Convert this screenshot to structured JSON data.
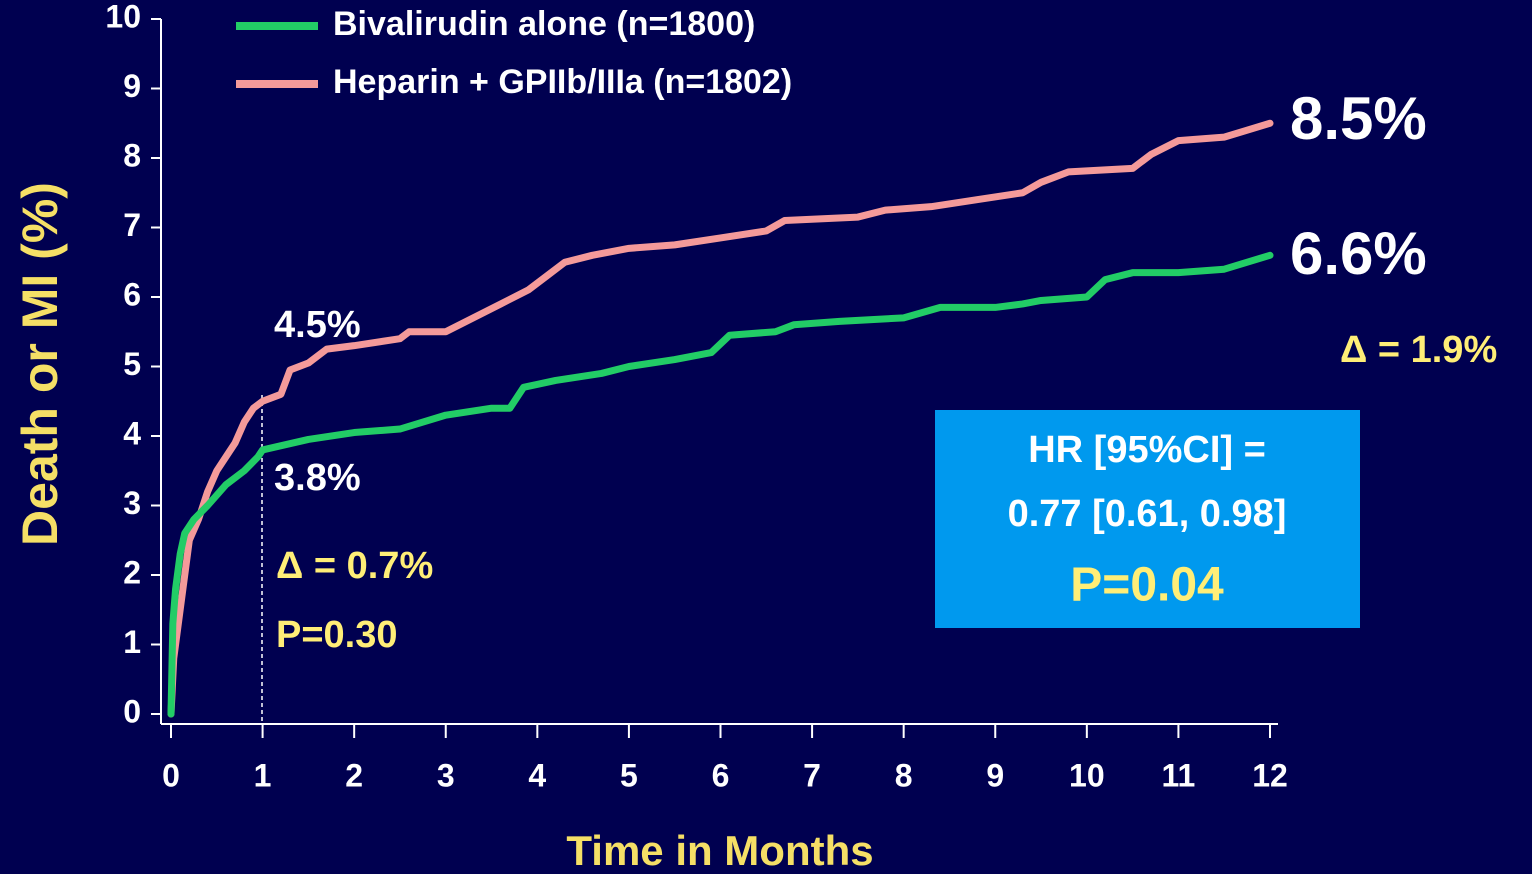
{
  "chart_data": {
    "type": "line",
    "xlabel": "Time in Months",
    "ylabel": "Death or MI (%)",
    "xlim": [
      0,
      12
    ],
    "ylim": [
      0,
      10
    ],
    "xticks": [
      0,
      1,
      2,
      3,
      4,
      5,
      6,
      7,
      8,
      9,
      10,
      11,
      12
    ],
    "yticks": [
      0,
      1,
      2,
      3,
      4,
      5,
      6,
      7,
      8,
      9,
      10
    ],
    "series": [
      {
        "name": "Bivalirudin alone (n=1800)",
        "color": "#22cc66",
        "x": [
          0,
          0.02,
          0.05,
          0.1,
          0.15,
          0.25,
          0.4,
          0.6,
          0.8,
          0.95,
          1.0,
          1.5,
          2,
          2.5,
          3,
          3.5,
          3.7,
          3.85,
          4.2,
          4.7,
          5,
          5.5,
          5.9,
          6.1,
          6.6,
          6.8,
          7.3,
          8,
          8.4,
          9,
          9.3,
          9.5,
          10,
          10.2,
          10.5,
          11,
          11.5,
          12
        ],
        "values": [
          0,
          1.3,
          1.8,
          2.3,
          2.6,
          2.8,
          3.0,
          3.3,
          3.5,
          3.7,
          3.8,
          3.95,
          4.05,
          4.1,
          4.3,
          4.4,
          4.4,
          4.7,
          4.8,
          4.9,
          5.0,
          5.1,
          5.2,
          5.45,
          5.5,
          5.6,
          5.65,
          5.7,
          5.85,
          5.85,
          5.9,
          5.95,
          6.0,
          6.25,
          6.35,
          6.35,
          6.4,
          6.6
        ]
      },
      {
        "name": "Heparin + GPIIb/IIIa (n=1802)",
        "color": "#f49a9a",
        "x": [
          0,
          0.03,
          0.1,
          0.15,
          0.2,
          0.3,
          0.4,
          0.5,
          0.6,
          0.7,
          0.8,
          0.9,
          1.0,
          1.2,
          1.3,
          1.5,
          1.7,
          2,
          2.5,
          2.6,
          3,
          3.3,
          3.6,
          3.9,
          4.1,
          4.3,
          4.6,
          5,
          5.5,
          6,
          6.5,
          6.7,
          7.5,
          7.8,
          8.3,
          8.8,
          9.3,
          9.5,
          9.8,
          10.5,
          10.7,
          11,
          11.5,
          12
        ],
        "values": [
          0,
          0.8,
          1.5,
          2.0,
          2.5,
          2.8,
          3.2,
          3.5,
          3.7,
          3.9,
          4.2,
          4.4,
          4.5,
          4.6,
          4.95,
          5.05,
          5.25,
          5.3,
          5.4,
          5.5,
          5.5,
          5.7,
          5.9,
          6.1,
          6.3,
          6.5,
          6.6,
          6.7,
          6.75,
          6.85,
          6.95,
          7.1,
          7.15,
          7.25,
          7.3,
          7.4,
          7.5,
          7.65,
          7.8,
          7.85,
          8.05,
          8.25,
          8.3,
          8.5
        ]
      }
    ],
    "annotations": [
      "4.5%",
      "3.8%",
      "Δ = 0.7%",
      "P=0.30",
      "8.5%",
      "6.6%",
      "Δ = 1.9%"
    ],
    "hr_box": [
      "HR [95%CI] =",
      "0.77 [0.61, 0.98]",
      "P=0.04"
    ]
  }
}
